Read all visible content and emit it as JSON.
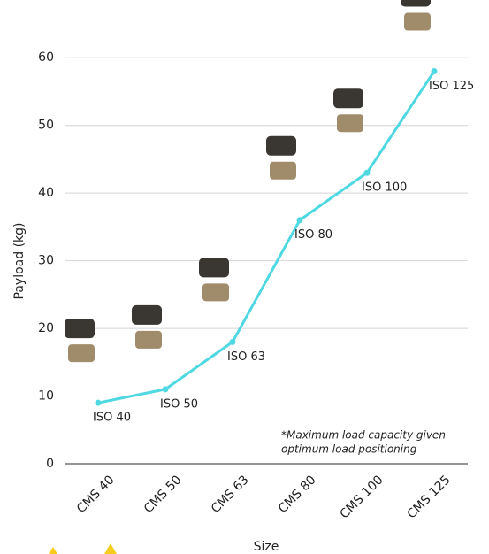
{
  "chart_data": {
    "type": "line",
    "categories": [
      "CMS 40",
      "CMS 50",
      "CMS 63",
      "CMS 80",
      "CMS 100",
      "CMS 125"
    ],
    "series": [
      {
        "color": "#4fd8e2",
        "values": [
          9,
          11,
          18,
          36,
          43,
          58
        ],
        "point_labels": [
          "ISO 40",
          "ISO 50",
          "ISO 63",
          "ISO 80",
          "ISO 100",
          "ISO 125"
        ]
      }
    ],
    "x_label": "Size",
    "y_label": "Payload (kg)",
    "ylim": [
      0,
      65
    ],
    "yticks": [
      0,
      10,
      20,
      30,
      40,
      50,
      60
    ],
    "grid": true,
    "note": [
      "*Maximum load capacity given",
      "optimum load positioning"
    ]
  }
}
